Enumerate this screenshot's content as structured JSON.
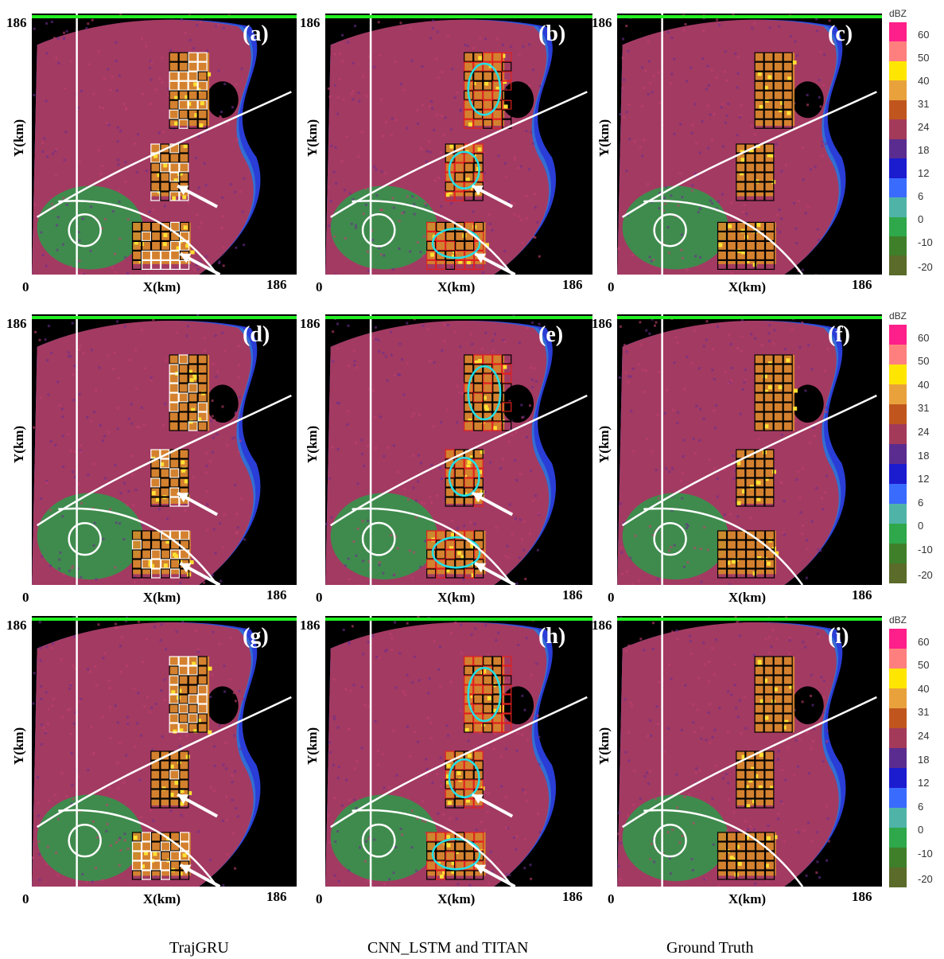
{
  "axis": {
    "x_label": "X(km)",
    "y_label": "Y(km)",
    "min_label": "0",
    "max_label": "186"
  },
  "colorbar": {
    "unit": "dBZ",
    "ticks": [
      "60",
      "50",
      "40",
      "31",
      "24",
      "18",
      "12",
      "6",
      "0",
      "-10",
      "-20"
    ],
    "colors": [
      "#ff1f8a",
      "#ff7f7f",
      "#ffe600",
      "#e9a23b",
      "#c0561e",
      "#a33a5a",
      "#5b2c8f",
      "#1b1bd0",
      "#3a6bff",
      "#4fb3a8",
      "#2ea84a",
      "#3f7f2a",
      "#5a6b2a"
    ]
  },
  "panels": [
    {
      "label": "(a)"
    },
    {
      "label": "(b)"
    },
    {
      "label": "(c)"
    },
    {
      "label": "(d)"
    },
    {
      "label": "(e)"
    },
    {
      "label": "(f)"
    },
    {
      "label": "(g)"
    },
    {
      "label": "(h)"
    },
    {
      "label": "(i)"
    }
  ],
  "captions": {
    "col1": "TrajGRU",
    "col2": "CNN_LSTM and TITAN",
    "col3": "Ground Truth"
  }
}
